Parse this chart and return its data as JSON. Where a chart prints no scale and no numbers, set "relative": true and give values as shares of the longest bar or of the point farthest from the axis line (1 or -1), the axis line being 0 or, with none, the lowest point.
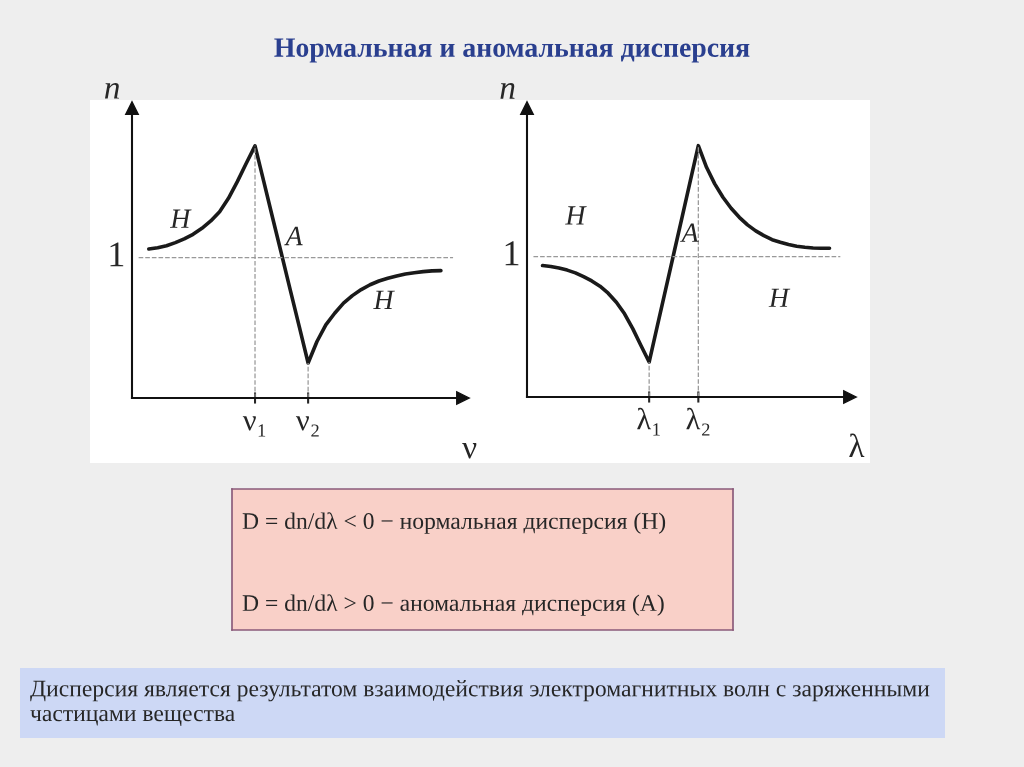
{
  "chart_data": [
    {
      "type": "line",
      "title": "Нормальная и аномальная дисперсия",
      "xlabel": "ν",
      "ylabel": "n",
      "relative": true,
      "categories": [
        null,
        null,
        null,
        null,
        null,
        null,
        null,
        null,
        null,
        null,
        null,
        null,
        "ν₁",
        null,
        null,
        null,
        null,
        null,
        "ν₂",
        null,
        null,
        null,
        null,
        null,
        null,
        null,
        null,
        null,
        null,
        null,
        null,
        null,
        null,
        null
      ],
      "series": [
        {
          "color": "#1a1a1a",
          "values": [
            0.591,
            0.596,
            0.604,
            0.616,
            0.631,
            0.649,
            0.673,
            0.702,
            0.739,
            0.792,
            0.858,
            0.93,
            1,
            0.857,
            0.713,
            0.57,
            0.426,
            0.283,
            0.139,
            0.224,
            0.29,
            0.336,
            0.376,
            0.406,
            0.43,
            0.449,
            0.464,
            0.475,
            0.484,
            0.492,
            0.497,
            0.501,
            0.504,
            0.505
          ]
        }
      ],
      "ref_lines": [
        {
          "axis": "y",
          "value": 0.557,
          "label": "1",
          "color": "#999999",
          "line_style": "dashed"
        }
      ],
      "annotations": [
        "Н",
        "А",
        "Н"
      ]
    },
    {
      "type": "line",
      "xlabel": "λ",
      "ylabel": "n",
      "relative": true,
      "categories": [
        null,
        null,
        null,
        null,
        null,
        null,
        null,
        null,
        null,
        null,
        null,
        null,
        null,
        "λ₁",
        null,
        null,
        null,
        null,
        null,
        "λ₂",
        null,
        null,
        null,
        null,
        null,
        null,
        null,
        null,
        null,
        null,
        null,
        null,
        null,
        null,
        null,
        null
      ],
      "series": [
        {
          "color": "#1a1a1a",
          "values": [
            0.523,
            0.519,
            0.513,
            0.505,
            0.494,
            0.479,
            0.462,
            0.441,
            0.413,
            0.377,
            0.331,
            0.272,
            0.205,
            0.139,
            0.283,
            0.426,
            0.57,
            0.713,
            0.857,
            1,
            0.914,
            0.848,
            0.795,
            0.751,
            0.715,
            0.685,
            0.661,
            0.642,
            0.626,
            0.616,
            0.607,
            0.6,
            0.596,
            0.593,
            0.592,
            0.592
          ]
        }
      ],
      "ref_lines": [
        {
          "axis": "y",
          "value": 0.559,
          "label": "1",
          "color": "#999999",
          "line_style": "dashed"
        }
      ],
      "annotations": [
        "Н",
        "А",
        "Н"
      ]
    },
    {
      "type": "other",
      "annotations": [
        "D = dn/dλ < 0 − нормальная дисперсия (Н)",
        "D = dn/dλ > 0 − аномальная дисперсия (А)",
        "Дисперсия является результатом взаимодействия электромагнитных волн с заряженными частицами вещества"
      ]
    }
  ]
}
